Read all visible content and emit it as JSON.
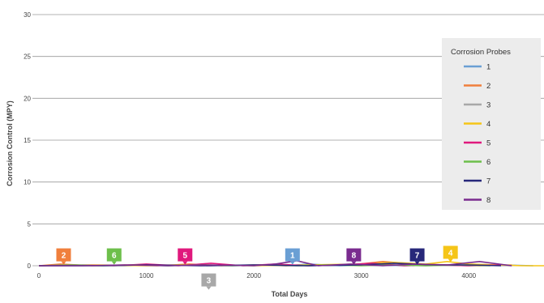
{
  "chart_data": {
    "type": "line",
    "title": "",
    "xlabel": "Total Days",
    "ylabel": "Corrosion Control (MPY)",
    "xlim": [
      0,
      4700
    ],
    "ylim": [
      0,
      30
    ],
    "x_ticks": [
      0,
      1000,
      2000,
      3000,
      4000
    ],
    "y_ticks": [
      0,
      5,
      10,
      15,
      20,
      25,
      30
    ],
    "grid": "horizontal",
    "legend": {
      "title": "Corrosion Probes",
      "placement": "right"
    },
    "series": [
      {
        "name": "1",
        "color": "#6a9fd4",
        "x": [
          0,
          300,
          600,
          900,
          1200,
          1500,
          1800,
          2100,
          2300,
          2500,
          2800,
          3100,
          3400,
          3700,
          4000,
          4300,
          4600
        ],
        "values": [
          0,
          0.1,
          0,
          0.1,
          0,
          0.1,
          0,
          0.1,
          0,
          0.2,
          0,
          0.1,
          0,
          0.1,
          0,
          0.1,
          0
        ]
      },
      {
        "name": "2",
        "color": "#f07f3c",
        "x": [
          0,
          200,
          500,
          800,
          1100,
          1400,
          1700,
          2000,
          2300,
          2600,
          2900,
          3200,
          3500,
          3800,
          4100,
          4400
        ],
        "values": [
          0,
          0.2,
          0,
          0.1,
          0,
          0.2,
          0,
          0.1,
          0,
          0.1,
          0.1,
          0.5,
          0.2,
          0.1,
          0,
          0.1
        ]
      },
      {
        "name": "3",
        "color": "#a8a8a8",
        "x": [
          0,
          400,
          800,
          1200,
          1600,
          2000,
          2400,
          2800,
          3200,
          3600,
          4000,
          4400
        ],
        "values": [
          0,
          0.1,
          0,
          0.1,
          0,
          0.1,
          0,
          0.1,
          0.1,
          0,
          0.1,
          0
        ]
      },
      {
        "name": "4",
        "color": "#f5c518",
        "x": [
          0,
          500,
          1000,
          1500,
          2000,
          2500,
          3000,
          3300,
          3600,
          3800,
          4000,
          4300,
          4500,
          4700
        ],
        "values": [
          0,
          0.1,
          0,
          0.1,
          0,
          0.1,
          0.2,
          0.4,
          0.2,
          0.5,
          0.2,
          0.1,
          0,
          0
        ]
      },
      {
        "name": "5",
        "color": "#e0197d",
        "x": [
          0,
          300,
          700,
          1000,
          1300,
          1600,
          1900,
          2200,
          2500,
          2800,
          3100,
          3400,
          3700,
          4000,
          4300
        ],
        "values": [
          0,
          0.1,
          0,
          0.2,
          0,
          0.3,
          0,
          0.2,
          0,
          0.1,
          0.3,
          0,
          0.1,
          0,
          0.1
        ]
      },
      {
        "name": "6",
        "color": "#6dbf4b",
        "x": [
          0,
          300,
          600,
          900,
          1200,
          1500,
          1800,
          2100,
          2400,
          2700,
          3000,
          3300,
          3600,
          3900,
          4200
        ],
        "values": [
          0,
          0.1,
          0,
          0.1,
          0,
          0.1,
          0,
          0.1,
          0,
          0.1,
          0,
          0.1,
          0,
          0.1,
          0
        ]
      },
      {
        "name": "7",
        "color": "#27287a",
        "x": [
          0,
          500,
          1000,
          1500,
          2000,
          2500,
          3000,
          3300,
          3500,
          3700,
          4000,
          4300
        ],
        "values": [
          0,
          0,
          0.1,
          0,
          0.1,
          0,
          0.1,
          0.3,
          0.2,
          0.1,
          0.1,
          0
        ]
      },
      {
        "name": "8",
        "color": "#7a2b8f",
        "x": [
          0,
          400,
          800,
          1200,
          1600,
          2000,
          2200,
          2400,
          2600,
          2900,
          3200,
          3500,
          3800,
          4100,
          4400
        ],
        "values": [
          0,
          0,
          0.1,
          0,
          0.1,
          0,
          0.2,
          0.6,
          0,
          0.2,
          0,
          0.2,
          0.1,
          0.5,
          0
        ]
      }
    ],
    "annotations": [
      {
        "text": "2",
        "x": 230,
        "y": 1.3,
        "color": "#f07f3c"
      },
      {
        "text": "6",
        "x": 700,
        "y": 1.3,
        "color": "#6dbf4b"
      },
      {
        "text": "5",
        "x": 1360,
        "y": 1.3,
        "color": "#e0197d"
      },
      {
        "text": "3",
        "x": 1580,
        "y": -1.7,
        "color": "#a8a8a8"
      },
      {
        "text": "1",
        "x": 2360,
        "y": 1.3,
        "color": "#6a9fd4"
      },
      {
        "text": "8",
        "x": 2930,
        "y": 1.3,
        "color": "#7a2b8f"
      },
      {
        "text": "7",
        "x": 3520,
        "y": 1.3,
        "color": "#27287a"
      },
      {
        "text": "4",
        "x": 3830,
        "y": 1.6,
        "color": "#f5c518"
      }
    ]
  }
}
